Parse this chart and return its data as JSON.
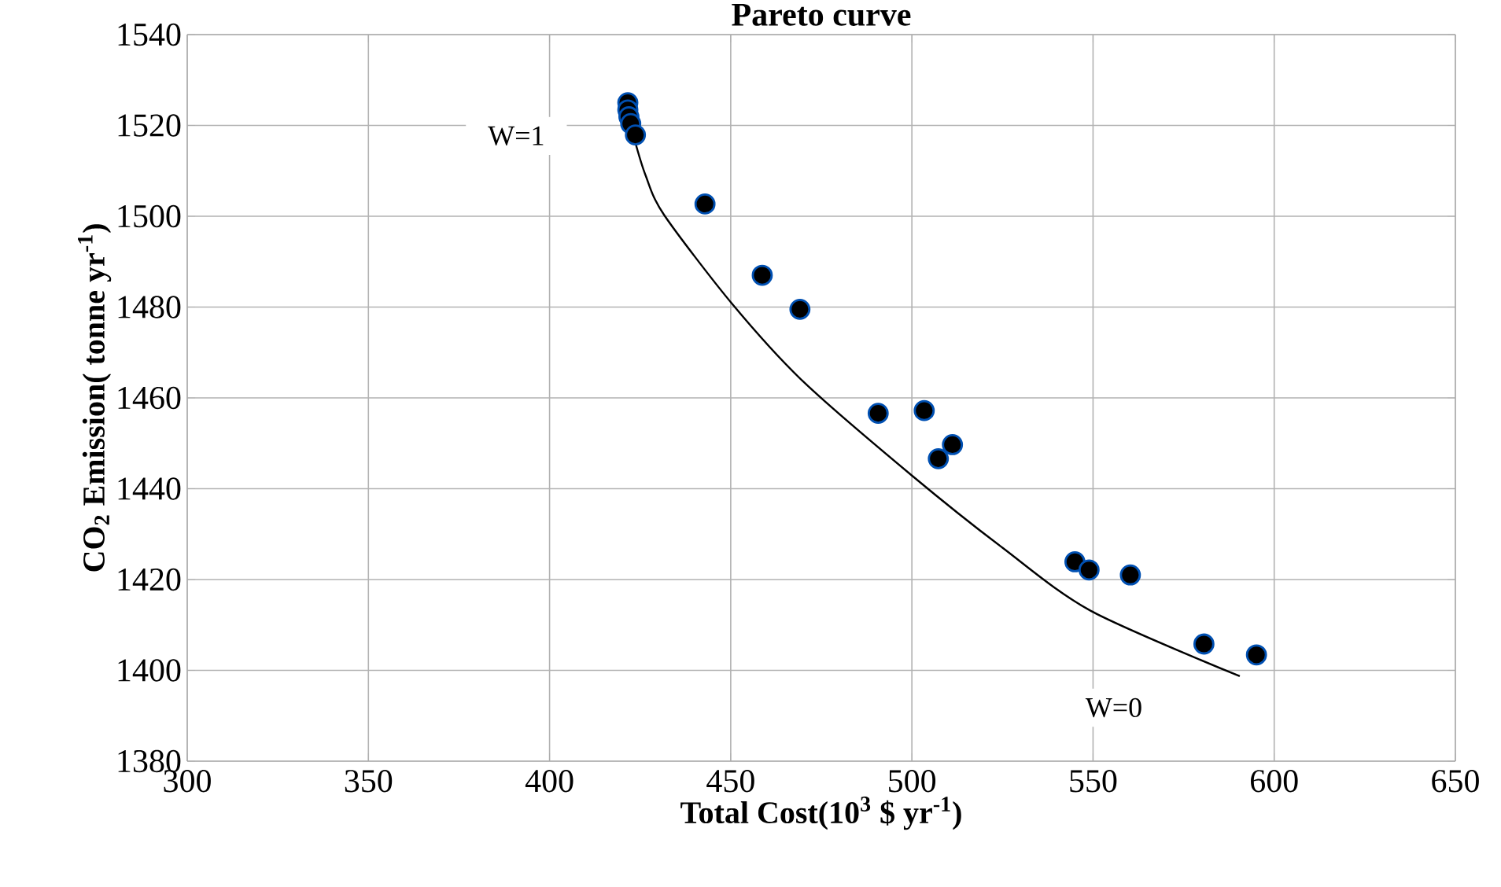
{
  "chart_data": {
    "type": "scatter",
    "title": "Pareto curve",
    "xlabel": "Total Cost(10$^{3}$ $ yr$^{-1}$)",
    "ylabel": "CO$_{2}$ Emission( tonne yr$^{-1}$)",
    "xlim": [
      300,
      650
    ],
    "xticks": [
      300,
      350,
      400,
      450,
      500,
      550,
      600,
      650
    ],
    "ylim": [
      1380,
      1540
    ],
    "yticks": [
      1380,
      1400,
      1420,
      1440,
      1460,
      1480,
      1500,
      1520,
      1540
    ],
    "grid": true,
    "series": [
      {
        "color": "#000000",
        "marker": "circle",
        "x": [
          421.6,
          421.6,
          421.9,
          422.4,
          423.7,
          442.9,
          458.7,
          469.1,
          490.7,
          503.4,
          507.3,
          511.2,
          545.0,
          548.9,
          560.3,
          580.6,
          595.1
        ],
        "values": [
          1525.0,
          1523.4,
          1521.9,
          1520.4,
          1517.9,
          1502.7,
          1487.0,
          1479.5,
          1456.6,
          1457.2,
          1446.6,
          1449.7,
          1423.9,
          1422.1,
          1421.0,
          1405.8,
          1403.4
        ]
      },
      {
        "type": "line",
        "color": "#000000",
        "marker": "none",
        "line_style": "solid",
        "x": [
          423.4,
          426.5,
          431.6,
          450.5,
          470.0,
          500.0,
          525.0,
          549.4,
          590.5
        ],
        "values": [
          1517.0,
          1509.0,
          1500.3,
          1480.6,
          1463.6,
          1442.9,
          1427.0,
          1413.1,
          1398.7
        ]
      }
    ],
    "annotations": [
      "W=1",
      "W=0"
    ]
  }
}
